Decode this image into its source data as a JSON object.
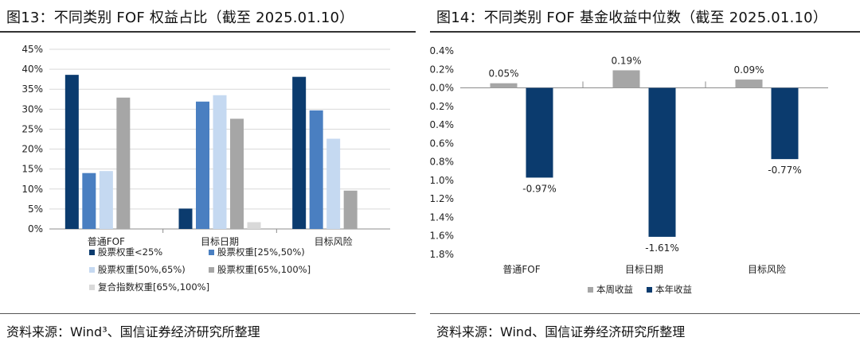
{
  "left": {
    "title": "图13：不同类别 FOF 权益占比（截至 2025.01.10）",
    "source": "资料来源：Wind³、国信证券经济研究所整理",
    "chart_data": {
      "type": "bar",
      "categories": [
        "普通FOF",
        "目标日期",
        "目标风险"
      ],
      "ylim": [
        0,
        45
      ],
      "yticks": [
        "0%",
        "5%",
        "10%",
        "15%",
        "20%",
        "25%",
        "30%",
        "35%",
        "40%",
        "45%"
      ],
      "grid": true,
      "legend_position": "bottom",
      "series": [
        {
          "name": "股票权重<25%",
          "color": "#0b3b6e",
          "values": [
            38.6,
            5.1,
            38.1
          ]
        },
        {
          "name": "股票权重[25%,50%)",
          "color": "#4a7fc1",
          "values": [
            14.0,
            31.9,
            29.7
          ]
        },
        {
          "name": "股票权重[50%,65%)",
          "color": "#c5d9f1",
          "values": [
            14.5,
            33.5,
            22.6
          ]
        },
        {
          "name": "股票权重[65%,100%]",
          "color": "#a6a6a6",
          "values": [
            32.9,
            27.6,
            9.6
          ]
        },
        {
          "name": "复合指数权重[65%,100%]",
          "color": "#d9d9d9",
          "values": [
            0,
            1.7,
            0
          ]
        }
      ]
    }
  },
  "right": {
    "title": "图14：不同类别 FOF 基金收益中位数（截至 2025.01.10）",
    "source": "资料来源：Wind、国信证券经济研究所整理",
    "chart_data": {
      "type": "bar",
      "categories": [
        "普通FOF",
        "目标日期",
        "目标风险"
      ],
      "ylim": [
        -1.8,
        0.4
      ],
      "yticks": [
        "0.4%",
        "0.2%",
        "0.0%",
        "0.2%",
        "0.4%",
        "0.6%",
        "0.8%",
        "1.0%",
        "1.2%",
        "1.4%",
        "1.6%",
        "1.8%"
      ],
      "grid": false,
      "legend_position": "bottom",
      "series": [
        {
          "name": "本周收益",
          "color": "#a6a6a6",
          "values": [
            0.05,
            0.19,
            0.09
          ],
          "labels": [
            "0.05%",
            "0.19%",
            "0.09%"
          ]
        },
        {
          "name": "本年收益",
          "color": "#0b3b6e",
          "values": [
            -0.97,
            -1.61,
            -0.77
          ],
          "labels": [
            "-0.97%",
            "-1.61%",
            "-0.77%"
          ]
        }
      ]
    }
  }
}
